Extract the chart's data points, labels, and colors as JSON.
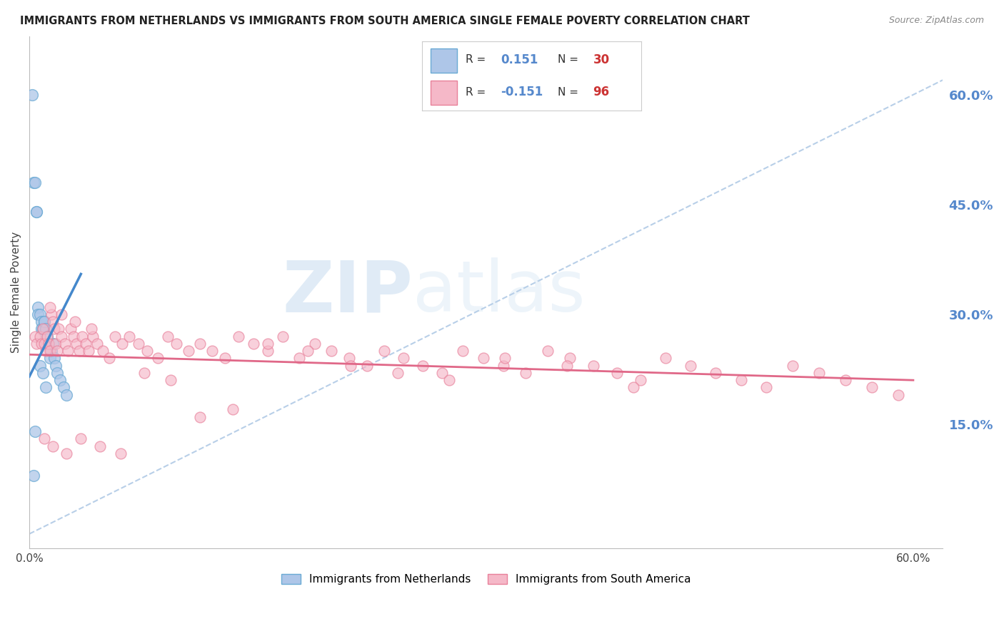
{
  "title": "IMMIGRANTS FROM NETHERLANDS VS IMMIGRANTS FROM SOUTH AMERICA SINGLE FEMALE POVERTY CORRELATION CHART",
  "source": "Source: ZipAtlas.com",
  "ylabel_left": "Single Female Poverty",
  "legend_label1": "Immigrants from Netherlands",
  "legend_label2": "Immigrants from South America",
  "r1": 0.151,
  "n1": 30,
  "r2": -0.151,
  "n2": 96,
  "xlim": [
    0.0,
    0.62
  ],
  "ylim": [
    -0.02,
    0.68
  ],
  "right_yticks": [
    0.15,
    0.3,
    0.45,
    0.6
  ],
  "right_ytick_labels": [
    "15.0%",
    "30.0%",
    "45.0%",
    "60.0%"
  ],
  "xtick_labels_show": [
    "0.0%",
    "60.0%"
  ],
  "color_blue_fill": "#aec6e8",
  "color_blue_edge": "#6aaad4",
  "color_pink_fill": "#f5b8c8",
  "color_pink_edge": "#e8809a",
  "color_line_blue": "#4488cc",
  "color_line_pink": "#e06888",
  "color_axis_right": "#5588cc",
  "color_diag": "#b8cfe8",
  "watermark_color": "#ddeeff",
  "blue_x": [
    0.002,
    0.003,
    0.004,
    0.005,
    0.005,
    0.006,
    0.006,
    0.007,
    0.008,
    0.008,
    0.009,
    0.01,
    0.01,
    0.011,
    0.012,
    0.013,
    0.014,
    0.015,
    0.016,
    0.017,
    0.018,
    0.019,
    0.021,
    0.023,
    0.025,
    0.007,
    0.009,
    0.011,
    0.004,
    0.003
  ],
  "blue_y": [
    0.6,
    0.48,
    0.48,
    0.44,
    0.44,
    0.31,
    0.3,
    0.3,
    0.29,
    0.28,
    0.28,
    0.29,
    0.29,
    0.28,
    0.27,
    0.26,
    0.24,
    0.25,
    0.26,
    0.24,
    0.23,
    0.22,
    0.21,
    0.2,
    0.19,
    0.23,
    0.22,
    0.2,
    0.14,
    0.08
  ],
  "pink_x": [
    0.004,
    0.005,
    0.007,
    0.008,
    0.009,
    0.01,
    0.011,
    0.012,
    0.013,
    0.014,
    0.015,
    0.016,
    0.017,
    0.018,
    0.019,
    0.02,
    0.022,
    0.024,
    0.026,
    0.028,
    0.03,
    0.032,
    0.034,
    0.036,
    0.038,
    0.04,
    0.043,
    0.046,
    0.05,
    0.054,
    0.058,
    0.063,
    0.068,
    0.074,
    0.08,
    0.087,
    0.094,
    0.1,
    0.108,
    0.116,
    0.124,
    0.133,
    0.142,
    0.152,
    0.162,
    0.172,
    0.183,
    0.194,
    0.205,
    0.217,
    0.229,
    0.241,
    0.254,
    0.267,
    0.28,
    0.294,
    0.308,
    0.322,
    0.337,
    0.352,
    0.367,
    0.383,
    0.399,
    0.415,
    0.432,
    0.449,
    0.466,
    0.483,
    0.5,
    0.518,
    0.536,
    0.554,
    0.572,
    0.59,
    0.014,
    0.022,
    0.031,
    0.042,
    0.01,
    0.016,
    0.025,
    0.035,
    0.048,
    0.062,
    0.078,
    0.096,
    0.116,
    0.138,
    0.162,
    0.189,
    0.218,
    0.25,
    0.285,
    0.323,
    0.365,
    0.41
  ],
  "pink_y": [
    0.27,
    0.26,
    0.27,
    0.26,
    0.28,
    0.26,
    0.25,
    0.27,
    0.26,
    0.25,
    0.3,
    0.29,
    0.28,
    0.26,
    0.25,
    0.28,
    0.27,
    0.26,
    0.25,
    0.28,
    0.27,
    0.26,
    0.25,
    0.27,
    0.26,
    0.25,
    0.27,
    0.26,
    0.25,
    0.24,
    0.27,
    0.26,
    0.27,
    0.26,
    0.25,
    0.24,
    0.27,
    0.26,
    0.25,
    0.26,
    0.25,
    0.24,
    0.27,
    0.26,
    0.25,
    0.27,
    0.24,
    0.26,
    0.25,
    0.24,
    0.23,
    0.25,
    0.24,
    0.23,
    0.22,
    0.25,
    0.24,
    0.23,
    0.22,
    0.25,
    0.24,
    0.23,
    0.22,
    0.21,
    0.24,
    0.23,
    0.22,
    0.21,
    0.2,
    0.23,
    0.22,
    0.21,
    0.2,
    0.19,
    0.31,
    0.3,
    0.29,
    0.28,
    0.13,
    0.12,
    0.11,
    0.13,
    0.12,
    0.11,
    0.22,
    0.21,
    0.16,
    0.17,
    0.26,
    0.25,
    0.23,
    0.22,
    0.21,
    0.24,
    0.23,
    0.2
  ]
}
